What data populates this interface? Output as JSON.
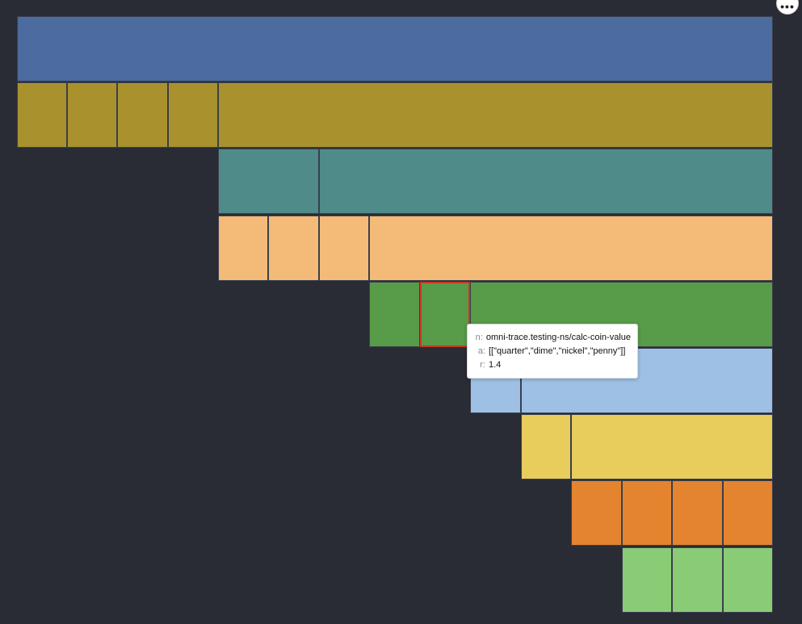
{
  "flamegraph": {
    "rows": [
      {
        "color": "#4c6b9e",
        "cells": [
          {
            "x": 21,
            "w": 936
          }
        ]
      },
      {
        "color": "#a9922e",
        "cells": [
          {
            "x": 21,
            "w": 62
          },
          {
            "x": 83,
            "w": 62
          },
          {
            "x": 145,
            "w": 63
          },
          {
            "x": 208,
            "w": 62
          },
          {
            "x": 270,
            "w": 687
          }
        ]
      },
      {
        "color": "#4f8b89",
        "cells": [
          {
            "x": 270,
            "w": 125
          },
          {
            "x": 395,
            "w": 562
          }
        ]
      },
      {
        "color": "#f4bb78",
        "cells": [
          {
            "x": 270,
            "w": 62
          },
          {
            "x": 332,
            "w": 63
          },
          {
            "x": 395,
            "w": 62
          },
          {
            "x": 457,
            "w": 500
          }
        ]
      },
      {
        "color": "#589b48",
        "cells": [
          {
            "x": 457,
            "w": 63
          },
          {
            "x": 520,
            "w": 62,
            "selected": true
          },
          {
            "x": 582,
            "w": 375
          }
        ]
      },
      {
        "color": "#9dc0e4",
        "cells": [
          {
            "x": 582,
            "w": 63
          },
          {
            "x": 645,
            "w": 312
          }
        ]
      },
      {
        "color": "#e8cc5c",
        "cells": [
          {
            "x": 645,
            "w": 62
          },
          {
            "x": 707,
            "w": 250
          }
        ]
      },
      {
        "color": "#e5842f",
        "cells": [
          {
            "x": 707,
            "w": 63
          },
          {
            "x": 770,
            "w": 62
          },
          {
            "x": 832,
            "w": 63
          },
          {
            "x": 895,
            "w": 62
          }
        ]
      },
      {
        "color": "#8acc76",
        "cells": [
          {
            "x": 770,
            "w": 62
          },
          {
            "x": 832,
            "w": 63
          },
          {
            "x": 895,
            "w": 62
          }
        ]
      }
    ]
  },
  "tooltip": {
    "n_key": "n:",
    "n_value": "omni-trace.testing-ns/calc-coin-value",
    "a_key": "a:",
    "a_value": "[[\"quarter\",\"dime\",\"nickel\",\"penny\"]]",
    "r_key": "r:",
    "r_value": "1.4"
  },
  "menu": {
    "more_glyph": "•••"
  }
}
